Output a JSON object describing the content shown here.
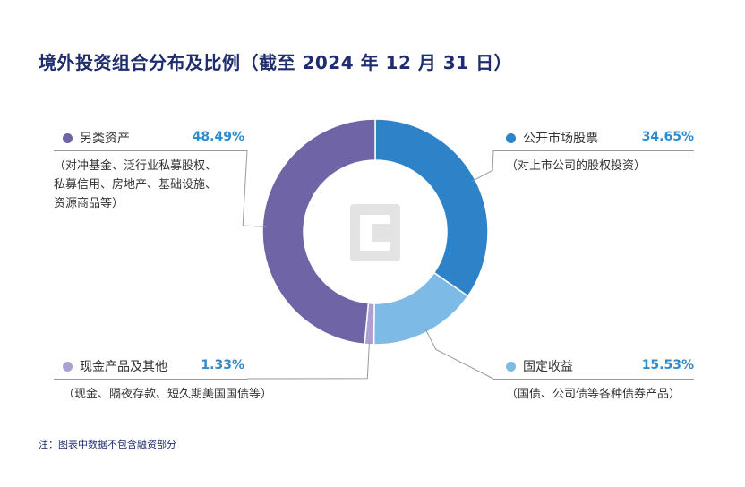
{
  "title": "境外投资组合分布及比例（截至 2024 年 12 月 31 日）",
  "note": "注：图表中数据不包含融资部分",
  "chart_data": {
    "type": "pie",
    "donut": true,
    "series": [
      {
        "name": "公开市场股票",
        "value": 34.65,
        "label": "34.65%",
        "desc": [
          "（对上市公司的股权投资）"
        ],
        "color": "#2d82c8"
      },
      {
        "name": "固定收益",
        "value": 15.53,
        "label": "15.53%",
        "desc": [
          "（国债、公司债等各种债券产品）"
        ],
        "color": "#7dbbe6"
      },
      {
        "name": "现金产品及其他",
        "value": 1.33,
        "label": "1.33%",
        "desc": [
          "（现金、隔夜存款、短久期美国国债等）"
        ],
        "color": "#ad9fd0"
      },
      {
        "name": "另类资产",
        "value": 48.49,
        "label": "48.49%",
        "desc": [
          "（对冲基金、泛行业私募股权、",
          "私募信用、房地产、基础设施、",
          "资源商品等）"
        ],
        "color": "#6e64a6"
      }
    ]
  }
}
